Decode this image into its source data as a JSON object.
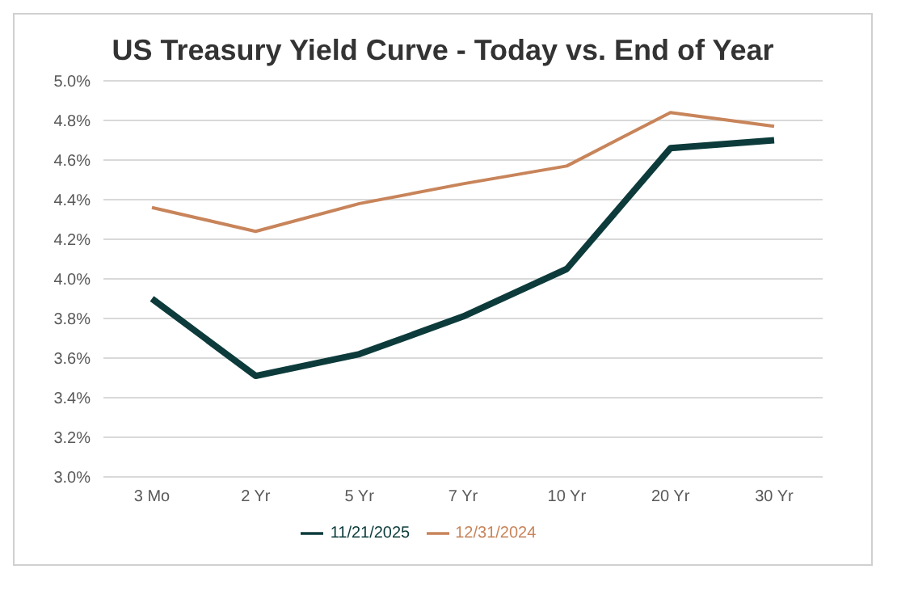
{
  "chart_data": {
    "type": "line",
    "title": "US Treasury Yield Curve - Today vs. End of Year",
    "categories": [
      "3 Mo",
      "2 Yr",
      "5 Yr",
      "7 Yr",
      "10 Yr",
      "20 Yr",
      "30 Yr"
    ],
    "series": [
      {
        "name": "11/21/2025",
        "color": "#0d3b3b",
        "values": [
          3.9,
          3.51,
          3.62,
          3.81,
          4.05,
          4.66,
          4.7
        ]
      },
      {
        "name": "12/31/2024",
        "color": "#c8845a",
        "values": [
          4.36,
          4.24,
          4.38,
          4.48,
          4.57,
          4.84,
          4.77
        ]
      }
    ],
    "ylim": [
      3.0,
      5.0
    ],
    "yticks": [
      {
        "value": 3.0,
        "label": "3.0%"
      },
      {
        "value": 3.2,
        "label": "3.2%"
      },
      {
        "value": 3.4,
        "label": "3.4%"
      },
      {
        "value": 3.6,
        "label": "3.6%"
      },
      {
        "value": 3.8,
        "label": "3.8%"
      },
      {
        "value": 4.0,
        "label": "4.0%"
      },
      {
        "value": 4.2,
        "label": "4.2%"
      },
      {
        "value": 4.4,
        "label": "4.4%"
      },
      {
        "value": 4.6,
        "label": "4.6%"
      },
      {
        "value": 4.8,
        "label": "4.8%"
      },
      {
        "value": 5.0,
        "label": "5.0%"
      }
    ],
    "grid": "y",
    "legend": "bottom",
    "marker": "none",
    "line_style": "solid"
  }
}
